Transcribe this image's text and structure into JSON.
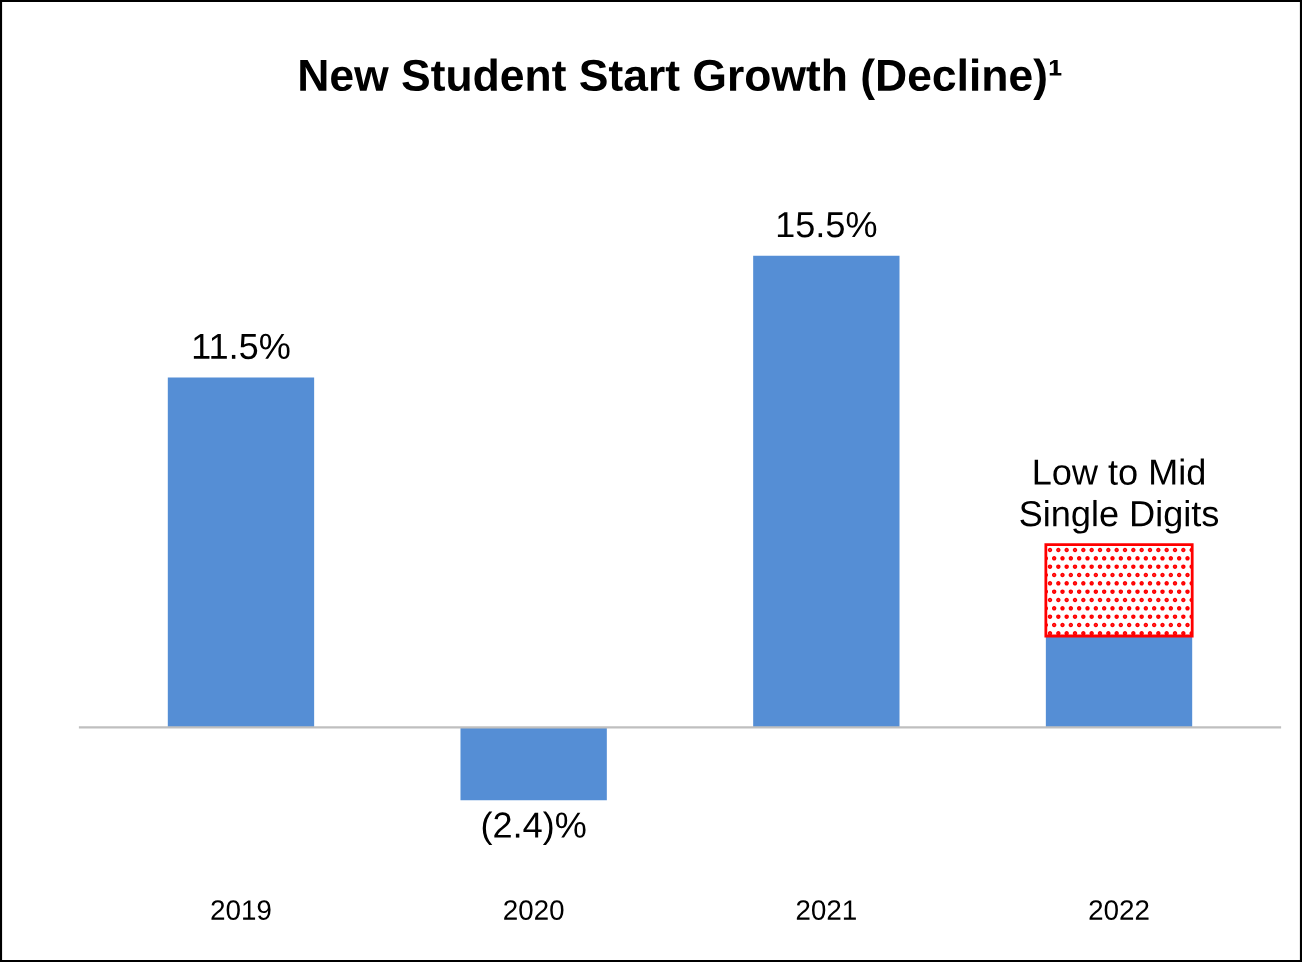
{
  "chart_data": {
    "type": "bar",
    "title": "New Student Start Growth (Decline)¹",
    "categories": [
      "2019",
      "2020",
      "2021",
      "2022"
    ],
    "stacked": true,
    "grid": false,
    "legend": false,
    "series": [
      {
        "color": "#558ed5",
        "values": [
          11.5,
          -2.4,
          15.5,
          3
        ],
        "value_labels": [
          "11.5%",
          "(2.4)%",
          "15.5%",
          null
        ]
      },
      {
        "color": "#ff0000",
        "values": [
          null,
          null,
          null,
          3
        ],
        "value_labels": [
          null,
          null,
          null,
          "Low to Mid\nSingle Digits"
        ]
      }
    ]
  }
}
